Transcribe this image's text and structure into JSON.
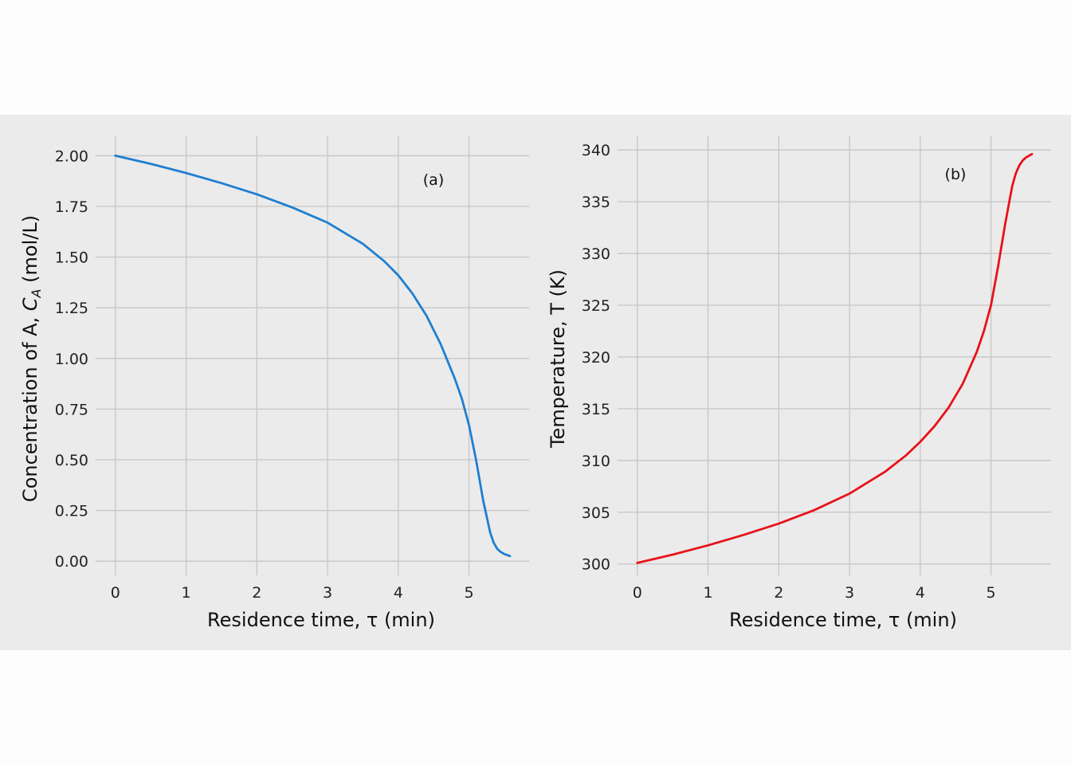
{
  "chart_data": [
    {
      "type": "line",
      "annotation": "(a)",
      "xlabel": "Residence time, τ  (min)",
      "ylabel": "Concentration of A,  C_A (mol/L)",
      "ylabel_parts": {
        "pre": "Concentration of A,  ",
        "sym": "C",
        "sub": "A",
        "post": " (mol/L)"
      },
      "xlim": [
        -0.28,
        5.85
      ],
      "ylim": [
        -0.07,
        2.1
      ],
      "xticks": [
        0,
        1,
        2,
        3,
        4,
        5
      ],
      "xtick_labels": [
        "0",
        "1",
        "2",
        "3",
        "4",
        "5"
      ],
      "yticks": [
        0.0,
        0.25,
        0.5,
        0.75,
        1.0,
        1.25,
        1.5,
        1.75,
        2.0
      ],
      "ytick_labels": [
        "0.00",
        "0.25",
        "0.50",
        "0.75",
        "1.00",
        "1.25",
        "1.50",
        "1.75",
        "2.00"
      ],
      "grid": true,
      "color": "#1f7fd0",
      "series": [
        {
          "x": [
            0,
            0.5,
            1.0,
            1.5,
            2.0,
            2.5,
            3.0,
            3.5,
            3.8,
            4.0,
            4.2,
            4.4,
            4.6,
            4.8,
            4.9,
            5.0,
            5.1,
            5.2,
            5.3,
            5.35,
            5.4,
            5.45,
            5.5,
            5.58
          ],
          "y": [
            2.0,
            1.96,
            1.915,
            1.865,
            1.81,
            1.745,
            1.67,
            1.565,
            1.48,
            1.41,
            1.32,
            1.21,
            1.07,
            0.9,
            0.8,
            0.67,
            0.5,
            0.3,
            0.14,
            0.09,
            0.06,
            0.045,
            0.035,
            0.025
          ]
        }
      ]
    },
    {
      "type": "line",
      "annotation": "(b)",
      "xlabel": "Residence time, τ  (min)",
      "ylabel": "Temperature,  T (K)",
      "xlim": [
        -0.28,
        5.85
      ],
      "ylim": [
        298.9,
        341.4
      ],
      "xticks": [
        0,
        1,
        2,
        3,
        4,
        5
      ],
      "xtick_labels": [
        "0",
        "1",
        "2",
        "3",
        "4",
        "5"
      ],
      "yticks": [
        300,
        305,
        310,
        315,
        320,
        325,
        330,
        335,
        340
      ],
      "ytick_labels": [
        "300",
        "305",
        "310",
        "315",
        "320",
        "325",
        "330",
        "335",
        "340"
      ],
      "grid": true,
      "color": "#e8121a",
      "series": [
        {
          "x": [
            0,
            0.5,
            1.0,
            1.5,
            2.0,
            2.5,
            3.0,
            3.5,
            3.8,
            4.0,
            4.2,
            4.4,
            4.6,
            4.8,
            4.9,
            5.0,
            5.1,
            5.2,
            5.3,
            5.35,
            5.4,
            5.45,
            5.5,
            5.58
          ],
          "y": [
            300.1,
            300.9,
            301.8,
            302.8,
            303.9,
            305.2,
            306.8,
            308.9,
            310.5,
            311.8,
            313.3,
            315.1,
            317.4,
            320.5,
            322.5,
            325.0,
            328.7,
            332.8,
            336.5,
            337.7,
            338.5,
            339.0,
            339.3,
            339.6
          ]
        }
      ]
    }
  ]
}
